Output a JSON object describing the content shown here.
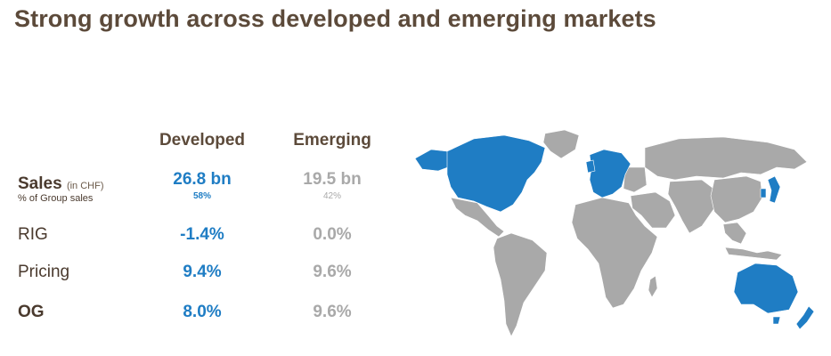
{
  "title": "Strong growth across developed and emerging markets",
  "columns": {
    "developed": "Developed",
    "emerging": "Emerging"
  },
  "rows": {
    "sales": {
      "label": "Sales",
      "unit": "(in CHF)",
      "sublabel": "% of Group sales",
      "developed": "26.8 bn",
      "developed_share": "58%",
      "emerging": "19.5 bn",
      "emerging_share": "42%"
    },
    "rig": {
      "label": "RIG",
      "developed": "-1.4%",
      "emerging": "0.0%"
    },
    "pricing": {
      "label": "Pricing",
      "developed": "9.4%",
      "emerging": "9.6%"
    },
    "og": {
      "label": "OG",
      "developed": "8.0%",
      "emerging": "9.6%"
    }
  },
  "colors": {
    "title": "#5c4a3a",
    "developed": "#1f7dc4",
    "emerging": "#a9a9a9"
  },
  "map": {
    "developed_regions": [
      "North America",
      "Western Europe",
      "Japan",
      "Korea",
      "Australia",
      "New Zealand"
    ],
    "emerging_regions": [
      "Latin America",
      "Africa",
      "Eastern Europe",
      "Middle East",
      "Asia"
    ]
  }
}
